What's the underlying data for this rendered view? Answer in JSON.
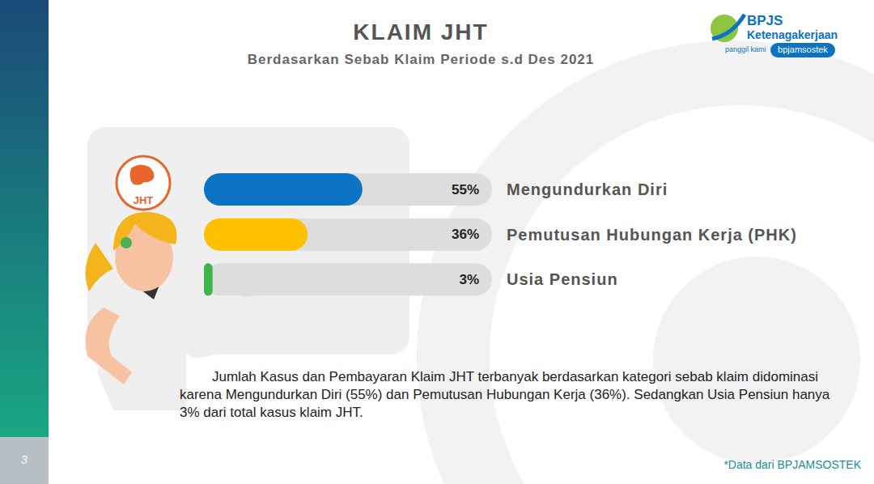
{
  "chart_data": {
    "type": "bar",
    "title": "KLAIM JHT",
    "subtitle": "Berdasarkan Sebab Klaim Periode s.d Des 2021",
    "orientation": "horizontal",
    "categories": [
      "Mengundurkan Diri",
      "Pemutusan Hubungan Kerja (PHK)",
      "Usia Pensiun"
    ],
    "values": [
      55,
      36,
      3
    ],
    "value_labels": [
      "55%",
      "36%",
      "3%"
    ],
    "colors": [
      "#0b72c4",
      "#ffc000",
      "#3db54a"
    ],
    "xlim": [
      0,
      100
    ],
    "tick_labels": "y",
    "data_labels": true,
    "annotations": {
      "note": "Jumlah Kasus dan Pembayaran Klaim JHT terbanyak berdasarkan kategori sebab klaim didominasi karena Mengundurkan Diri (55%) dan Pemutusan Hubungan Kerja (36%). Sedangkan Usia Pensiun hanya 3% dari total kasus klaim JHT.",
      "source": "*Data dari BPJAMSOSTEK",
      "page": "3",
      "icon_label": "JHT",
      "logo_title": "BPJS",
      "logo_subtitle": "Ketenagakerjaan",
      "logo_tagline": "panggil kami",
      "logo_badge": "bpjamsostek"
    }
  }
}
